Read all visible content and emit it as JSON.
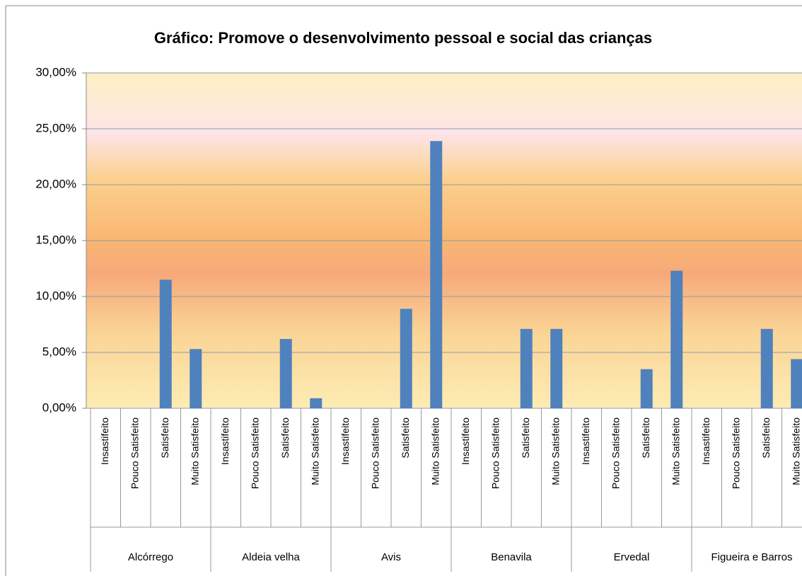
{
  "chart_data": {
    "type": "bar",
    "title": "Gráfico: Promove o desenvolvimento pessoal e social das crianças",
    "groups": [
      "Alcórrego",
      "Aldeia velha",
      "Avis",
      "Benavila",
      "Ervedal",
      "Figueira e Barros"
    ],
    "categories": [
      "Insastifeito",
      "Pouco  Satisfeito",
      "Satisfeito",
      "Muito Satisfeito",
      "Insastifeito",
      "Pouco  Satisfeito",
      "Satisfeito",
      "Muito Satisfeito",
      "Insastifeito",
      "Pouco  Satisfeito",
      "Satisfeito",
      "Muito Satisfeito",
      "Insastifeito",
      "Pouco  Satisfeito",
      "Satisfeito",
      "Muito Satisfeito",
      "Insastifeito",
      "Pouco  Satisfeito",
      "Satisfeito",
      "Muito Satisfeito",
      "Insastifeito",
      "Pouco  Satisfeito",
      "Satisfeito",
      "Muito Satisfeito"
    ],
    "values": [
      0,
      0,
      11.5,
      5.3,
      0,
      0,
      6.2,
      0.9,
      0,
      0,
      8.9,
      23.9,
      0,
      0,
      7.1,
      7.1,
      0,
      0,
      3.5,
      12.3,
      0,
      0,
      7.1,
      4.4
    ],
    "color": "#4f81bd",
    "ylim": [
      0,
      30
    ],
    "yticks": [
      {
        "value": 0,
        "label": "0,00%"
      },
      {
        "value": 5,
        "label": "5,00%"
      },
      {
        "value": 10,
        "label": "10,00%"
      },
      {
        "value": 15,
        "label": "15,00%"
      },
      {
        "value": 20,
        "label": "20,00%"
      },
      {
        "value": 25,
        "label": "25,00%"
      },
      {
        "value": 30,
        "label": "30,00%"
      }
    ],
    "grid": true
  }
}
